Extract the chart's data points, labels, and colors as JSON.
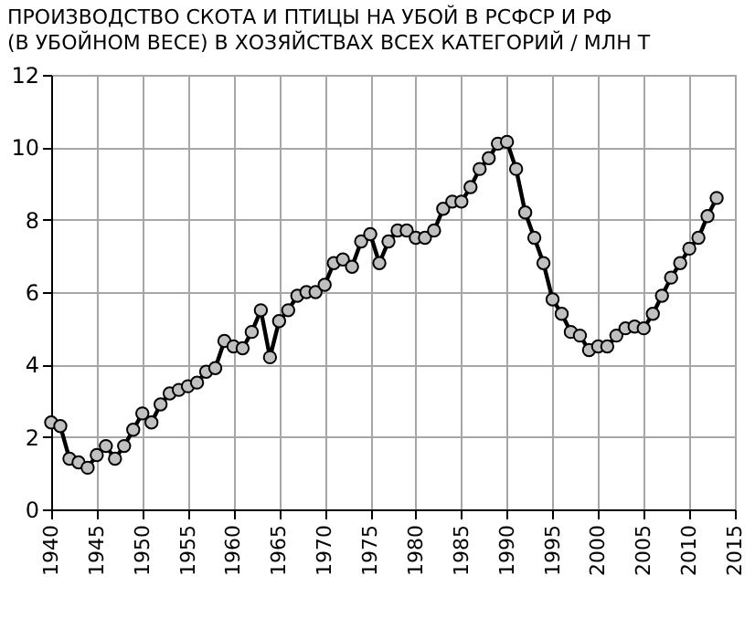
{
  "chart_data": {
    "type": "line",
    "title": "ПРОИЗВОДСТВО СКОТА И ПТИЦЫ НА УБОЙ В  РСФСР  И  РФ",
    "subtitle": "(В УБОЙНОМ ВЕСЕ)  В ХОЗЯЙСТВАХ ВСЕХ КАТЕГОРИЙ  /  МЛН Т",
    "x": [
      1940,
      1941,
      1942,
      1943,
      1944,
      1945,
      1946,
      1947,
      1948,
      1949,
      1950,
      1951,
      1952,
      1953,
      1954,
      1955,
      1956,
      1957,
      1958,
      1959,
      1960,
      1961,
      1962,
      1963,
      1964,
      1965,
      1966,
      1967,
      1968,
      1969,
      1970,
      1971,
      1972,
      1973,
      1974,
      1975,
      1976,
      1977,
      1978,
      1979,
      1980,
      1981,
      1982,
      1983,
      1984,
      1985,
      1986,
      1987,
      1988,
      1989,
      1990,
      1991,
      1992,
      1993,
      1994,
      1995,
      1996,
      1997,
      1998,
      1999,
      2000,
      2001,
      2002,
      2003,
      2004,
      2005,
      2006,
      2007,
      2008,
      2009,
      2010,
      2011,
      2012,
      2013
    ],
    "series": [
      {
        "color": "#000000",
        "values": [
          2.4,
          2.3,
          1.4,
          1.3,
          1.15,
          1.5,
          1.75,
          1.4,
          1.75,
          2.2,
          2.65,
          2.4,
          2.9,
          3.2,
          3.3,
          3.4,
          3.5,
          3.8,
          3.9,
          4.65,
          4.5,
          4.45,
          4.9,
          5.5,
          4.2,
          5.2,
          5.5,
          5.9,
          6.0,
          6.0,
          6.2,
          6.8,
          6.9,
          6.7,
          7.4,
          7.6,
          6.8,
          7.4,
          7.7,
          7.7,
          7.5,
          7.5,
          7.7,
          8.3,
          8.5,
          8.5,
          8.9,
          9.4,
          9.7,
          10.1,
          10.15,
          9.4,
          8.2,
          7.5,
          6.8,
          5.8,
          5.4,
          4.9,
          4.8,
          4.4,
          4.5,
          4.5,
          4.8,
          5.0,
          5.05,
          5.0,
          5.4,
          5.9,
          6.4,
          6.8,
          7.2,
          7.5,
          8.1,
          8.6
        ]
      }
    ],
    "xlim": [
      1940,
      2015
    ],
    "xticks": [
      1940,
      1945,
      1950,
      1955,
      1960,
      1965,
      1970,
      1975,
      1980,
      1985,
      1990,
      1995,
      2000,
      2005,
      2010,
      2015
    ],
    "ylim": [
      0,
      12
    ],
    "yticks": [
      0,
      2,
      4,
      6,
      8,
      10,
      12
    ],
    "grid": true,
    "marker": "circle",
    "line_style": "solid"
  }
}
